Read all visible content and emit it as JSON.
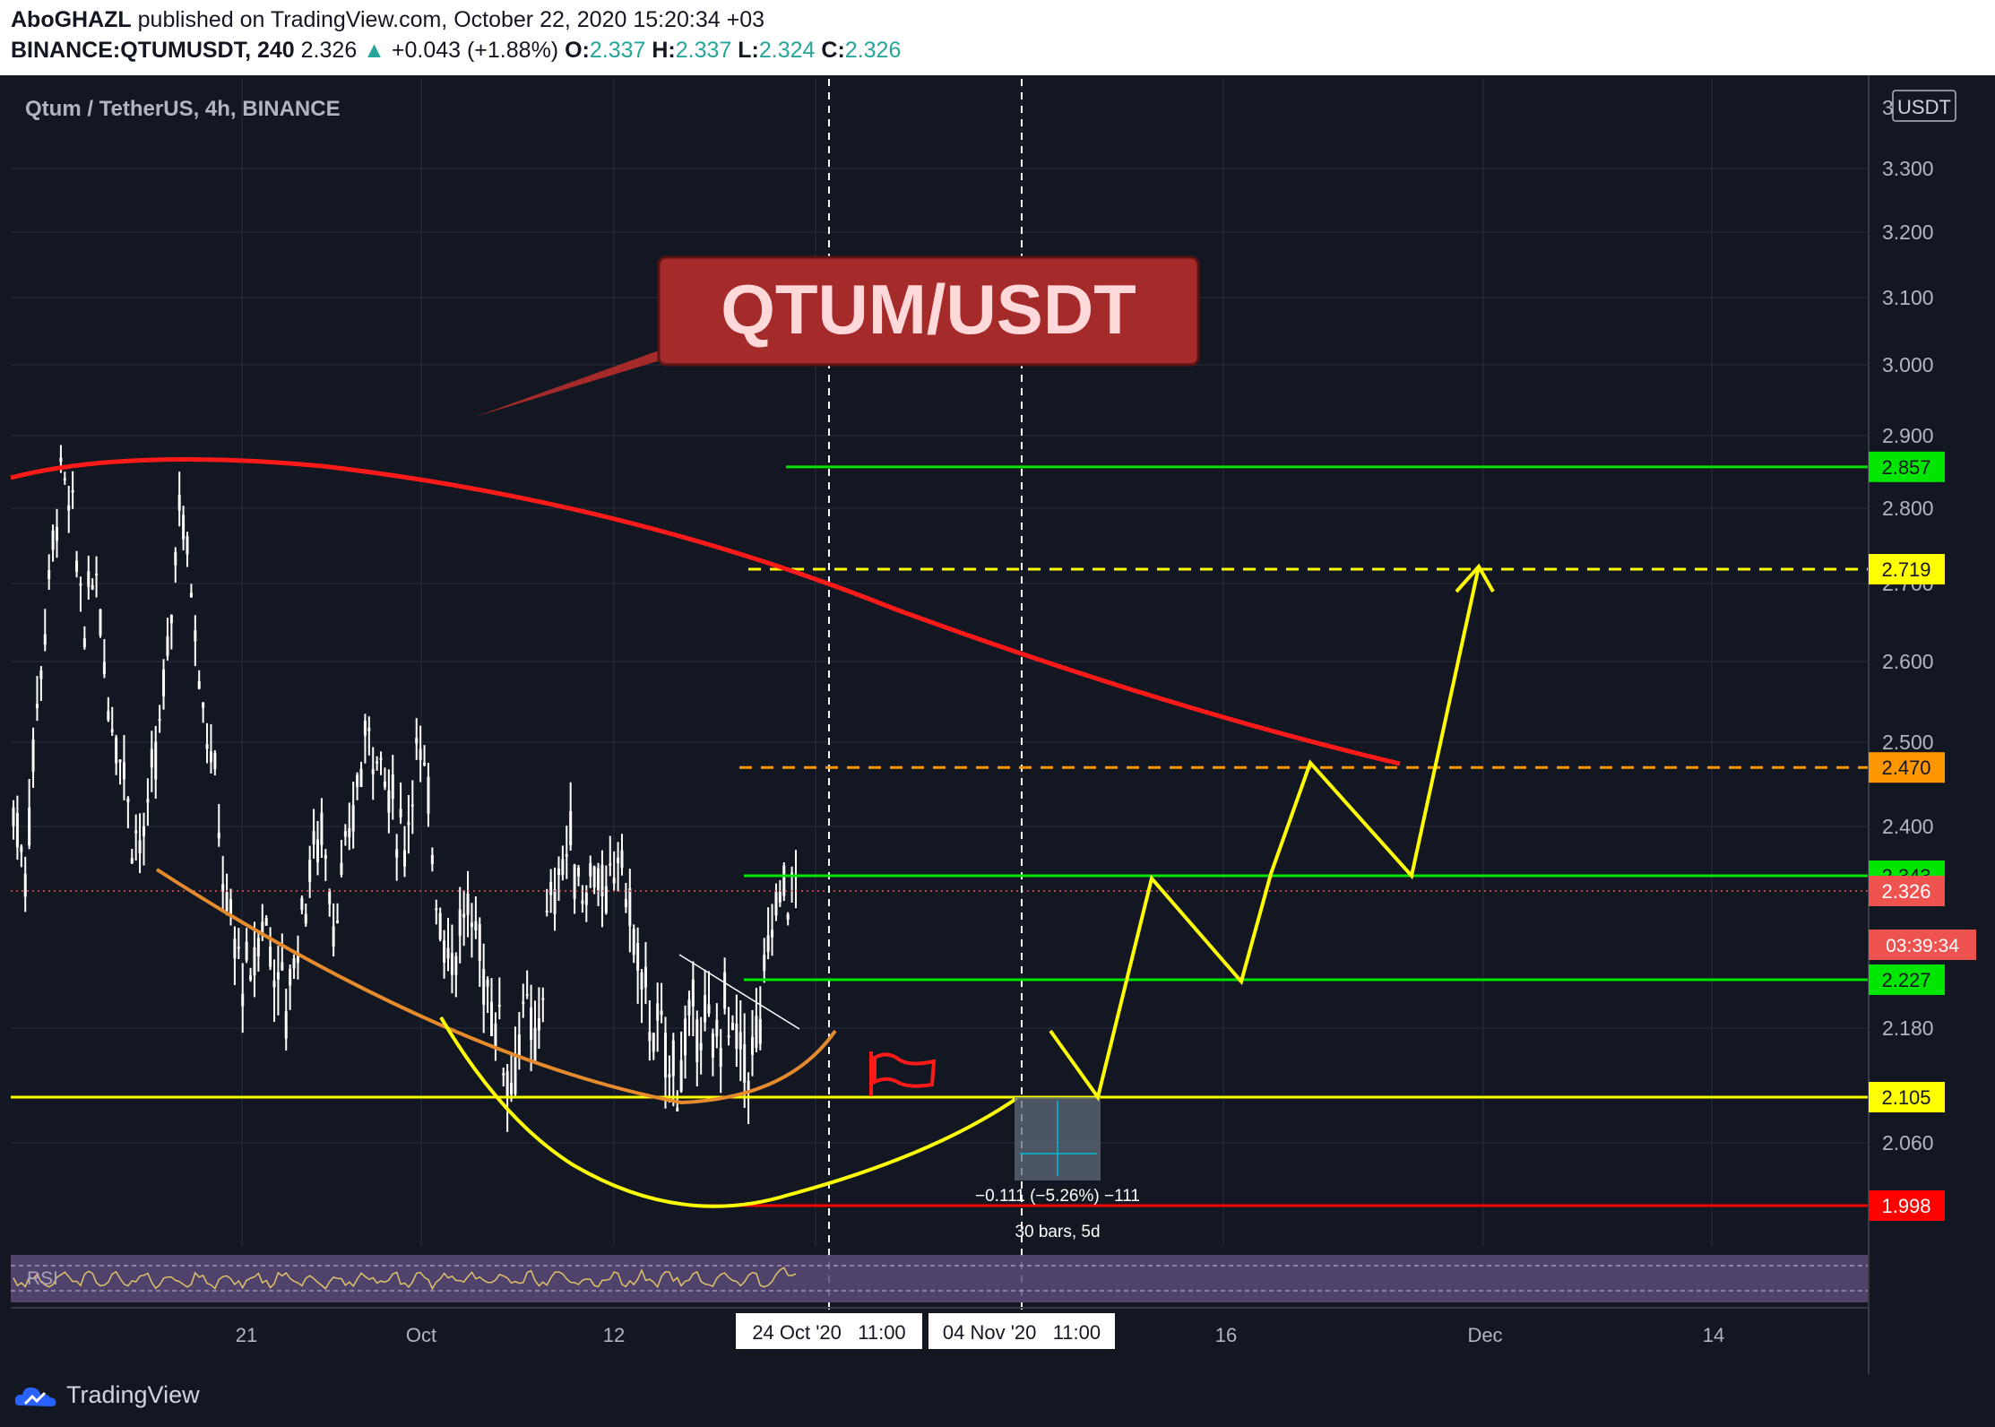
{
  "header": {
    "author": "AboGHAZL",
    "published_text": "published on TradingView.com, October 22, 2020 15:20:34 +03",
    "symbol": "BINANCE:QTUMUSDT, 240",
    "last": "2.326",
    "change": "+0.043 (+1.88%)",
    "o_label": "O:",
    "o": "2.337",
    "h_label": "H:",
    "h": "2.337",
    "l_label": "L:",
    "l": "2.324",
    "c_label": "C:",
    "c": "2.326"
  },
  "chart": {
    "legend": "Qtum / TetherUS, 4h, BINANCE",
    "currency": "USDT",
    "banner": "QTUM/USDT",
    "rsi_label": "RSI",
    "measure_label": "−0.111 (−5.26%) −111",
    "measure_bars": "30 bars, 5d",
    "countdown": "03:39:34",
    "cursor_dates": [
      "24 Oct '20   11:00",
      "04 Nov '20   11:00"
    ],
    "colors": {
      "up": "#26a69a",
      "green_line": "#00e600",
      "yellow": "#ffff00",
      "orange": "#ff9800",
      "red": "#ff0000",
      "banner": "#a52a2a"
    }
  },
  "chart_data": {
    "type": "candlestick",
    "symbol": "QTUMUSDT",
    "interval": "4h",
    "y_ticks": [
      3.3,
      3.2,
      3.1,
      3.0,
      2.9,
      2.8,
      2.7,
      2.6,
      2.5,
      2.4,
      2.18,
      2.06
    ],
    "y_tick_labels": [
      "3.300",
      "3.200",
      "3.100",
      "3.000",
      "2.900",
      "2.800",
      "2.700",
      "2.600",
      "2.500",
      "2.400",
      "2.180",
      "2.060"
    ],
    "x_tick_labels": [
      "21",
      "Oct",
      "12",
      "16",
      "Dec",
      "14"
    ],
    "horizontal_levels": [
      {
        "value": 2.857,
        "label": "2.857",
        "style": "solid",
        "color": "green"
      },
      {
        "value": 2.719,
        "label": "2.719",
        "style": "dashed",
        "color": "yellow"
      },
      {
        "value": 2.47,
        "label": "2.470",
        "style": "dashed",
        "color": "orange"
      },
      {
        "value": 2.343,
        "label": "2.343",
        "style": "solid",
        "color": "green"
      },
      {
        "value": 2.227,
        "label": "2.227",
        "style": "solid",
        "color": "green"
      },
      {
        "value": 2.105,
        "label": "2.105",
        "style": "solid",
        "color": "yellow"
      },
      {
        "value": 1.998,
        "label": "1.998",
        "style": "solid",
        "color": "red"
      }
    ],
    "last_price": {
      "value": 2.326,
      "label": "2.326"
    },
    "close_series": [
      2.42,
      2.35,
      2.55,
      2.7,
      2.85,
      2.78,
      2.65,
      2.72,
      2.55,
      2.5,
      2.4,
      2.38,
      2.48,
      2.6,
      2.82,
      2.7,
      2.55,
      2.45,
      2.3,
      2.25,
      2.22,
      2.3,
      2.25,
      2.2,
      2.28,
      2.35,
      2.4,
      2.3,
      2.35,
      2.45,
      2.52,
      2.48,
      2.42,
      2.38,
      2.5,
      2.42,
      2.3,
      2.25,
      2.3,
      2.28,
      2.22,
      2.18,
      2.12,
      2.2,
      2.15,
      2.28,
      2.35,
      2.38,
      2.32,
      2.36,
      2.3,
      2.38,
      2.3,
      2.22,
      2.18,
      2.15,
      2.13,
      2.17,
      2.2,
      2.15,
      2.2,
      2.16,
      2.14,
      2.18,
      2.3,
      2.33,
      2.326
    ],
    "projection_path": [
      [
        0,
        2.18
      ],
      [
        1,
        2.105
      ],
      [
        2,
        2.343
      ],
      [
        3,
        2.227
      ],
      [
        4,
        2.343
      ],
      [
        5,
        2.47
      ],
      [
        6,
        2.343
      ],
      [
        7,
        2.719
      ]
    ]
  }
}
